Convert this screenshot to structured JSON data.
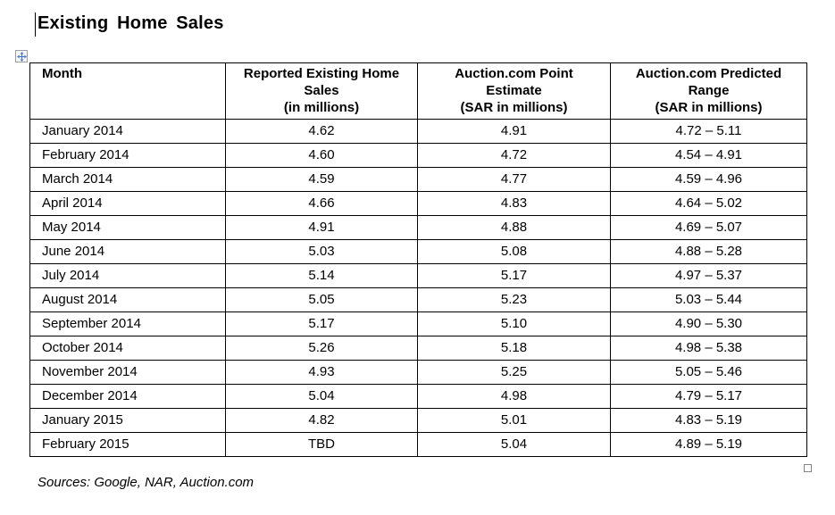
{
  "page": {
    "title": "Existing Home Sales",
    "sources": "Sources: Google, NAR, Auction.com"
  },
  "icons": {
    "move_handle": "four-way-move-arrow",
    "resize_handle": "square-resize-grip"
  },
  "colors": {
    "text": "#000000",
    "table_border": "#000000",
    "move_arrow": "#4472c4",
    "handle_border": "#9e9e9e"
  },
  "table": {
    "headers": [
      {
        "lines": [
          "Month"
        ]
      },
      {
        "lines": [
          "Reported Existing Home",
          "Sales",
          "(in millions)"
        ]
      },
      {
        "lines": [
          "Auction.com Point",
          "Estimate",
          "(SAR in millions)"
        ]
      },
      {
        "lines": [
          "Auction.com Predicted",
          "Range",
          "(SAR in millions)"
        ]
      }
    ],
    "rows": [
      {
        "month": "January 2014",
        "reported": "4.62",
        "point_estimate": "4.91",
        "predicted_range": "4.72 – 5.11"
      },
      {
        "month": "February 2014",
        "reported": "4.60",
        "point_estimate": "4.72",
        "predicted_range": "4.54 – 4.91"
      },
      {
        "month": "March 2014",
        "reported": "4.59",
        "point_estimate": "4.77",
        "predicted_range": "4.59 – 4.96"
      },
      {
        "month": "April 2014",
        "reported": "4.66",
        "point_estimate": "4.83",
        "predicted_range": "4.64 – 5.02"
      },
      {
        "month": "May 2014",
        "reported": "4.91",
        "point_estimate": "4.88",
        "predicted_range": "4.69 – 5.07"
      },
      {
        "month": "June 2014",
        "reported": "5.03",
        "point_estimate": "5.08",
        "predicted_range": "4.88 – 5.28"
      },
      {
        "month": "July 2014",
        "reported": "5.14",
        "point_estimate": "5.17",
        "predicted_range": "4.97 – 5.37"
      },
      {
        "month": "August 2014",
        "reported": "5.05",
        "point_estimate": "5.23",
        "predicted_range": "5.03 – 5.44"
      },
      {
        "month": "September 2014",
        "reported": "5.17",
        "point_estimate": "5.10",
        "predicted_range": "4.90 – 5.30"
      },
      {
        "month": "October 2014",
        "reported": "5.26",
        "point_estimate": "5.18",
        "predicted_range": "4.98 – 5.38"
      },
      {
        "month": "November 2014",
        "reported": "4.93",
        "point_estimate": "5.25",
        "predicted_range": "5.05 – 5.46"
      },
      {
        "month": "December 2014",
        "reported": "5.04",
        "point_estimate": "4.98",
        "predicted_range": "4.79 – 5.17"
      },
      {
        "month": "January 2015",
        "reported": "4.82",
        "point_estimate": "5.01",
        "predicted_range": "4.83 – 5.19"
      },
      {
        "month": "February 2015",
        "reported": "TBD",
        "point_estimate": "5.04",
        "predicted_range": "4.89 – 5.19"
      }
    ]
  }
}
